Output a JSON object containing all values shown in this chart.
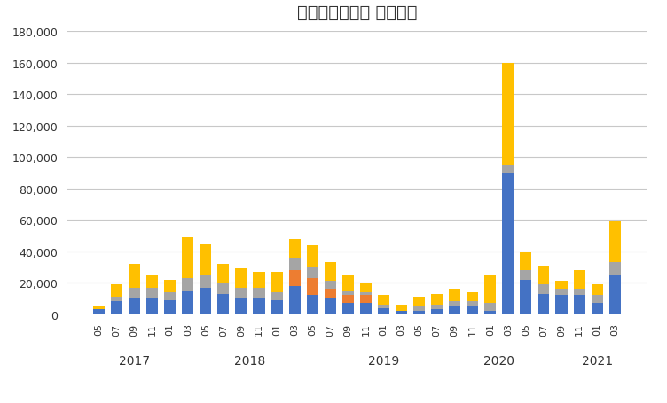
{
  "title": "ループイフダン 月別収益",
  "categories": [
    "05",
    "07",
    "09",
    "11",
    "01",
    "03",
    "05",
    "07",
    "09",
    "11",
    "01",
    "03",
    "05",
    "07",
    "09",
    "11",
    "01",
    "03",
    "05",
    "07",
    "09",
    "11",
    "01",
    "03",
    "05",
    "07",
    "09",
    "11",
    "01",
    "03"
  ],
  "year_labels": [
    {
      "year": "2017",
      "index": 2.0
    },
    {
      "year": "2018",
      "index": 8.5
    },
    {
      "year": "2019",
      "index": 16.0
    },
    {
      "year": "2020",
      "index": 22.5
    },
    {
      "year": "2021",
      "index": 28.0
    }
  ],
  "aud_jpy": [
    3000,
    8000,
    10000,
    10000,
    9000,
    15000,
    17000,
    13000,
    10000,
    10000,
    9000,
    18000,
    12000,
    10000,
    7000,
    7000,
    4000,
    2000,
    2000,
    3000,
    5000,
    5000,
    2000,
    90000,
    22000,
    13000,
    12000,
    12000,
    7000,
    25000
  ],
  "cad_jpy": [
    0,
    0,
    0,
    0,
    0,
    0,
    0,
    0,
    0,
    0,
    0,
    10000,
    11000,
    6000,
    5000,
    5000,
    0,
    0,
    0,
    0,
    0,
    0,
    0,
    0,
    0,
    0,
    0,
    0,
    0,
    0
  ],
  "eur_jpy": [
    0,
    3000,
    7000,
    7000,
    5000,
    8000,
    8000,
    7000,
    7000,
    7000,
    5000,
    8000,
    7000,
    5000,
    3000,
    2000,
    2000,
    0,
    3000,
    3000,
    3000,
    3000,
    5000,
    5000,
    6000,
    6000,
    4000,
    4000,
    5000,
    8000
  ],
  "usd_jpy": [
    2000,
    8000,
    15000,
    8000,
    8000,
    26000,
    20000,
    12000,
    12000,
    10000,
    13000,
    12000,
    14000,
    12000,
    10000,
    6000,
    6000,
    4000,
    6000,
    7000,
    8000,
    6000,
    18000,
    65000,
    12000,
    12000,
    5000,
    12000,
    7000,
    26000
  ],
  "colors": {
    "AUD/JPY": "#4472C4",
    "CAD/JPY": "#ED7D31",
    "EUR/JPY": "#A5A5A5",
    "USD/JPY": "#FFC000"
  },
  "ylim": [
    0,
    180000
  ],
  "yticks": [
    0,
    20000,
    40000,
    60000,
    80000,
    100000,
    120000,
    140000,
    160000,
    180000
  ],
  "background_color": "#FFFFFF",
  "grid_color": "#C8C8C8"
}
